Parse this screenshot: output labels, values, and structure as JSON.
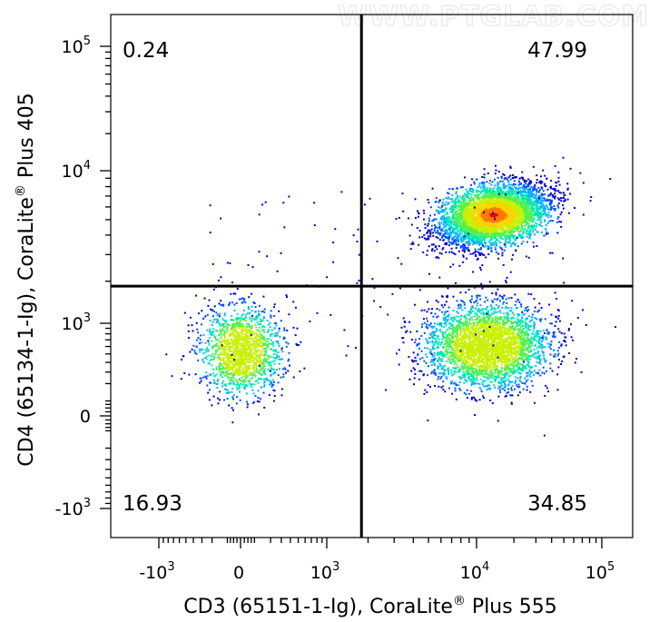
{
  "watermark": "WWW.PTGLAB.COM",
  "chart_data": {
    "type": "scatter",
    "subtype": "flow-cytometry-density-dot-plot",
    "xlabel": {
      "main": "CD3 (65151-1-Ig), CoraLite",
      "reg": "®",
      "tail": " Plus 555"
    },
    "ylabel": {
      "main": "CD4 (65134-1-Ig), CoraLite",
      "reg": "®",
      "tail": " Plus 405"
    },
    "x_axis_scale": "biexponential",
    "y_axis_scale": "biexponential",
    "x_ticks": [
      {
        "base": "-10",
        "exp": "3",
        "value": -1000
      },
      {
        "base": "0",
        "exp": "",
        "value": 0
      },
      {
        "base": "10",
        "exp": "3",
        "value": 1000
      },
      {
        "base": "10",
        "exp": "4",
        "value": 10000
      },
      {
        "base": "10",
        "exp": "5",
        "value": 100000
      }
    ],
    "y_ticks": [
      {
        "base": "10",
        "exp": "5",
        "value": 100000
      },
      {
        "base": "10",
        "exp": "4",
        "value": 10000
      },
      {
        "base": "10",
        "exp": "3",
        "value": 1000
      },
      {
        "base": "0",
        "exp": "",
        "value": 0
      },
      {
        "base": "-10",
        "exp": "3",
        "value": -1000
      }
    ],
    "quadrant_gate": {
      "x": 1800,
      "y": 1850
    },
    "quadrants": [
      {
        "name": "upper-left",
        "percent": "0.24"
      },
      {
        "name": "upper-right",
        "percent": "47.99"
      },
      {
        "name": "lower-left",
        "percent": "16.93"
      },
      {
        "name": "lower-right",
        "percent": "34.85"
      }
    ],
    "populations": [
      {
        "name": "CD3-CD4-",
        "center_x": 0,
        "center_y": 550,
        "share": 0.1693
      },
      {
        "name": "CD3+CD4+",
        "center_x": 13500,
        "center_y": 5400,
        "share": 0.4799
      },
      {
        "name": "CD3+CD4-",
        "center_x": 12000,
        "center_y": 620,
        "share": 0.3485
      }
    ],
    "density_colors": [
      "#0000c8",
      "#0050ff",
      "#00b4ff",
      "#00e6b4",
      "#50f050",
      "#c8f000",
      "#ffd200",
      "#ff7800",
      "#e60000"
    ]
  }
}
